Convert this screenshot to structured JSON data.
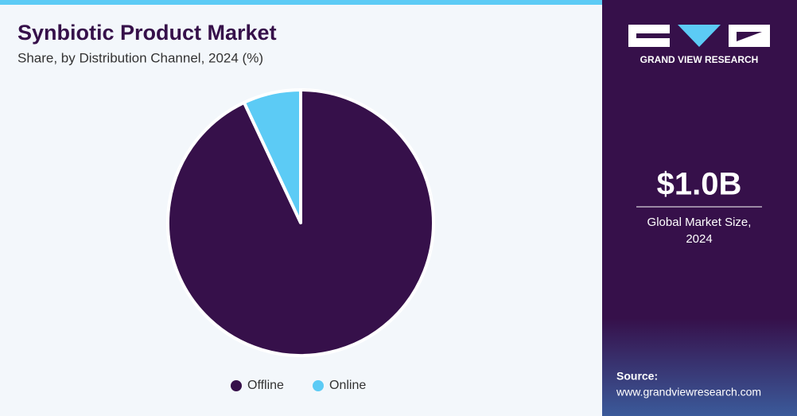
{
  "chart_data": {
    "type": "pie",
    "title": "Synbiotic Product Market",
    "subtitle": "Share, by Distribution Channel, 2024 (%)",
    "categories": [
      "Offline",
      "Online"
    ],
    "values": [
      93,
      7
    ],
    "colors": [
      "#36104a",
      "#5ccbf5"
    ]
  },
  "sidebar": {
    "brand": "GRAND VIEW RESEARCH",
    "market_size": "$1.0B",
    "market_size_label": [
      "Global Market Size,",
      "2024"
    ],
    "source_label": "Source:",
    "source_url": "www.grandviewresearch.com"
  }
}
